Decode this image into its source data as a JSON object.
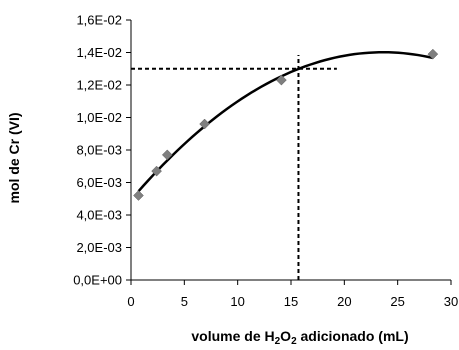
{
  "chart_data": {
    "type": "scatter",
    "xlabel_parts": [
      "volume de H",
      "2",
      "O",
      "2",
      " adicionado (mL)"
    ],
    "ylabel_parts": [
      "mol de Cr (VI)"
    ],
    "xlim": [
      0,
      30
    ],
    "ylim": [
      0,
      0.016
    ],
    "x_ticks": [
      0,
      5,
      10,
      15,
      20,
      25,
      30
    ],
    "x_tick_labels": [
      "0",
      "5",
      "10",
      "15",
      "20",
      "25",
      "30"
    ],
    "y_ticks": [
      0,
      0.002,
      0.004,
      0.006,
      0.008,
      0.01,
      0.012,
      0.014,
      0.016
    ],
    "y_tick_labels": [
      "0,0E+00",
      "2,0E-03",
      "4,0E-03",
      "6,0E-03",
      "8,0E-03",
      "1,0E-02",
      "1,2E-02",
      "1,4E-02",
      "1,6E-02"
    ],
    "grid": false,
    "series": [
      {
        "points": [
          {
            "x": 0.7,
            "y": 0.0052
          },
          {
            "x": 2.4,
            "y": 0.0067
          },
          {
            "x": 3.4,
            "y": 0.0077
          },
          {
            "x": 6.9,
            "y": 0.0096
          },
          {
            "x": 14.1,
            "y": 0.0123
          },
          {
            "x": 28.3,
            "y": 0.0139
          }
        ],
        "color": "#7f7f7f"
      }
    ],
    "trendline": {
      "type": "polynomial",
      "x_range": [
        0.7,
        28.3
      ],
      "coefficients": [
        0.00493,
        0.0007685,
        -1.625e-05
      ],
      "color": "#000000"
    },
    "reference_lines": {
      "x": 15.7,
      "y": 0.013,
      "horizontal_to_x": 19.3,
      "color": "#000000"
    }
  }
}
